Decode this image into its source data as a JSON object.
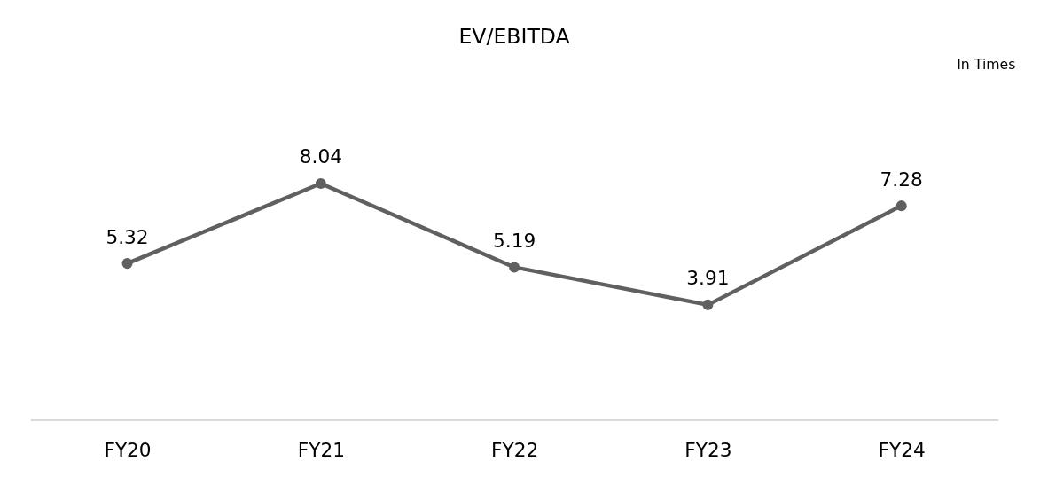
{
  "chart_data": {
    "type": "line",
    "title": "EV/EBITDA",
    "annotations": [
      "In Times"
    ],
    "categories": [
      "FY20",
      "FY21",
      "FY22",
      "FY23",
      "FY24"
    ],
    "series": [
      {
        "color": "#606060",
        "values": [
          5.32,
          8.04,
          5.19,
          3.91,
          7.28
        ]
      }
    ],
    "data_labels": true,
    "marker": "circle",
    "line_style": "solid",
    "grid": false,
    "tick_labels": "x"
  }
}
